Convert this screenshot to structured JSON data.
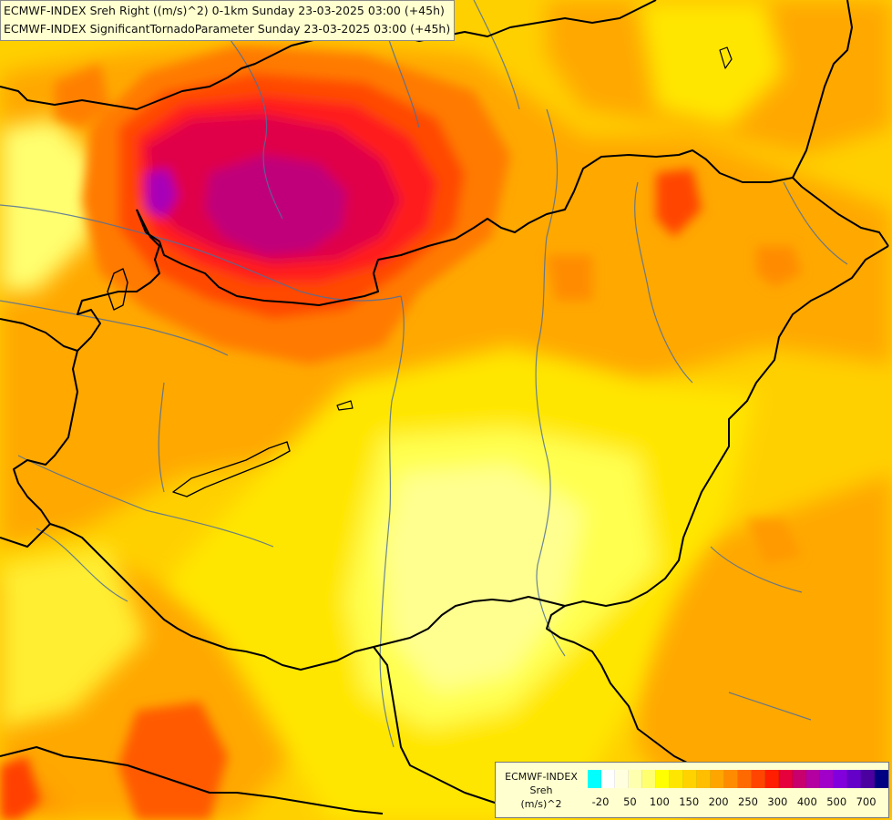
{
  "map": {
    "titles": [
      "ECMWF-INDEX Sreh Right ((m/s)^2) 0-1km Sunday 23-03-2025 03:00 (+45h)",
      "ECMWF-INDEX SignificantTornadoParameter Sunday 23-03-2025 03:00 (+45h)"
    ],
    "colors": {
      "background": "#ffd24a",
      "border_lines": "#000000",
      "river_lines": "#4f6f9a"
    }
  },
  "legend": {
    "model": "ECMWF-INDEX",
    "parameter": "Sreh",
    "unit": "(m/s)^2",
    "swatches": [
      "#00ffff",
      "#ffffff",
      "#ffffe0",
      "#ffffb0",
      "#ffff70",
      "#ffff00",
      "#ffe600",
      "#ffd200",
      "#ffbe00",
      "#ffa500",
      "#ff8c00",
      "#ff6a00",
      "#ff4500",
      "#ff1e00",
      "#e6003c",
      "#c8006e",
      "#b400a0",
      "#a000c8",
      "#8200dc",
      "#6400c8",
      "#4b00a0",
      "#000082"
    ],
    "labels": [
      "-20",
      "50",
      "100",
      "150",
      "200",
      "250",
      "300",
      "400",
      "500",
      "700"
    ]
  }
}
